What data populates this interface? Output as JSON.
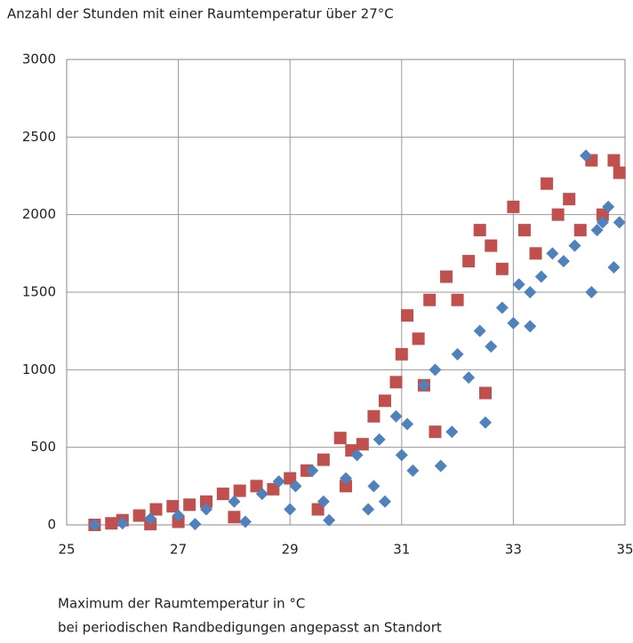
{
  "chart_data": {
    "type": "scatter",
    "title": "Anzahl der Stunden mit einer Raumtemperatur über 27°C",
    "x_label": [
      "Maximum der Raumtemperatur  in °C",
      "bei periodischen Randbedigungen angepasst an Standort"
    ],
    "xlim": [
      25,
      35
    ],
    "xticks": [
      25,
      27,
      29,
      31,
      33,
      35
    ],
    "ylim": [
      0,
      3000
    ],
    "yticks": [
      0,
      500,
      1000,
      1500,
      2000,
      2500,
      3000
    ],
    "grid": true,
    "series": [
      {
        "color": "#c0504d",
        "marker": "square",
        "x": [
          25.5,
          25.8,
          26.0,
          26.3,
          26.6,
          26.9,
          27.2,
          27.5,
          27.8,
          28.1,
          28.4,
          28.7,
          29.0,
          29.3,
          29.6,
          29.9,
          30.1,
          30.3,
          30.5,
          30.7,
          30.9,
          31.0,
          31.1,
          31.3,
          31.5,
          31.6,
          31.8,
          32.0,
          32.2,
          32.4,
          32.5,
          32.6,
          32.8,
          33.0,
          33.2,
          33.4,
          33.6,
          33.8,
          34.0,
          34.2,
          34.4,
          34.6,
          34.8,
          34.9,
          28.0,
          29.5,
          30.0,
          27.0,
          26.5,
          31.4
        ],
        "values": [
          0,
          10,
          30,
          60,
          100,
          120,
          130,
          150,
          200,
          220,
          250,
          230,
          300,
          350,
          420,
          560,
          480,
          520,
          700,
          800,
          920,
          1100,
          1350,
          1200,
          1450,
          600,
          1600,
          1450,
          1700,
          1900,
          850,
          1800,
          1650,
          2050,
          1900,
          1750,
          2200,
          2000,
          2100,
          1900,
          2350,
          2000,
          2350,
          2270,
          50,
          100,
          250,
          20,
          5,
          900
        ]
      },
      {
        "color": "#4f81bd",
        "marker": "diamond",
        "x": [
          25.5,
          26.0,
          26.5,
          27.0,
          27.5,
          28.0,
          28.5,
          28.8,
          29.1,
          29.4,
          29.6,
          29.7,
          30.0,
          30.2,
          30.4,
          30.6,
          30.7,
          30.9,
          31.1,
          31.2,
          31.4,
          31.6,
          31.7,
          31.9,
          32.0,
          32.2,
          32.4,
          32.5,
          32.6,
          32.8,
          33.0,
          33.1,
          33.3,
          33.5,
          33.7,
          33.9,
          34.1,
          34.3,
          34.4,
          34.5,
          34.6,
          34.7,
          34.8,
          34.9,
          29.0,
          28.2,
          27.3,
          30.5,
          31.0,
          33.3
        ],
        "values": [
          0,
          10,
          40,
          60,
          100,
          150,
          200,
          280,
          250,
          350,
          150,
          30,
          300,
          450,
          100,
          550,
          150,
          700,
          650,
          350,
          900,
          1000,
          380,
          600,
          1100,
          950,
          1250,
          660,
          1150,
          1400,
          1300,
          1550,
          1500,
          1600,
          1750,
          1700,
          1800,
          2380,
          1500,
          1900,
          1950,
          2050,
          1660,
          1950,
          100,
          20,
          5,
          250,
          450,
          1280
        ]
      }
    ]
  }
}
